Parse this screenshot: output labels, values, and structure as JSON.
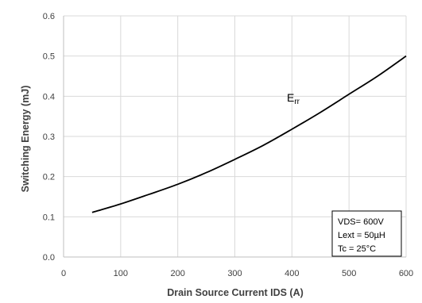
{
  "chart_data": {
    "type": "line",
    "title": "",
    "xlabel": "Drain Source Current IDS (A)",
    "ylabel": "Switching Energy (mJ)",
    "xlim": [
      0,
      600
    ],
    "ylim": [
      0,
      0.6
    ],
    "x_ticks": [
      "0",
      "100",
      "200",
      "300",
      "400",
      "500",
      "600"
    ],
    "y_ticks": [
      "0.0",
      "0.1",
      "0.2",
      "0.3",
      "0.4",
      "0.5",
      "0.6"
    ],
    "grid": true,
    "series": [
      {
        "label_main": "E",
        "label_sub": "rr",
        "color": "#000000",
        "x": [
          50,
          100,
          150,
          200,
          250,
          300,
          350,
          400,
          450,
          500,
          550,
          600
        ],
        "y": [
          0.111,
          0.132,
          0.156,
          0.181,
          0.21,
          0.243,
          0.278,
          0.318,
          0.36,
          0.405,
          0.45,
          0.5
        ]
      }
    ],
    "annotation": {
      "lines": [
        "VDS= 600V",
        "Lext = 50µH",
        "Tc = 25°C"
      ],
      "position": "bottom-right"
    }
  }
}
